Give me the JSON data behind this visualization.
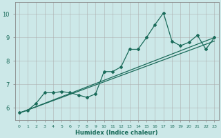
{
  "xlabel": "Humidex (Indice chaleur)",
  "bg_color": "#cce8e8",
  "grid_color": "#aaaaaa",
  "line_color": "#1a6b5a",
  "xlim": [
    -0.5,
    23.5
  ],
  "ylim": [
    5.5,
    10.5
  ],
  "yticks": [
    6,
    7,
    8,
    9,
    10
  ],
  "xticks": [
    0,
    1,
    2,
    3,
    4,
    5,
    6,
    7,
    8,
    9,
    10,
    11,
    12,
    13,
    14,
    15,
    16,
    17,
    18,
    19,
    20,
    21,
    22,
    23
  ],
  "curve1_x": [
    0,
    1,
    2,
    3,
    4,
    5,
    6,
    7,
    8,
    9,
    10,
    11,
    12,
    13,
    14,
    15,
    16,
    17,
    18,
    19,
    20,
    21,
    22,
    23
  ],
  "curve1_y": [
    5.8,
    5.9,
    6.2,
    6.65,
    6.65,
    6.7,
    6.65,
    6.55,
    6.45,
    6.6,
    7.55,
    7.55,
    7.75,
    8.5,
    8.5,
    9.0,
    9.55,
    10.05,
    8.85,
    8.65,
    8.8,
    9.1,
    8.5,
    9.0
  ],
  "line1_x": [
    0,
    23
  ],
  "line1_y": [
    5.78,
    8.85
  ],
  "line2_x": [
    0,
    23
  ],
  "line2_y": [
    5.78,
    9.0
  ]
}
